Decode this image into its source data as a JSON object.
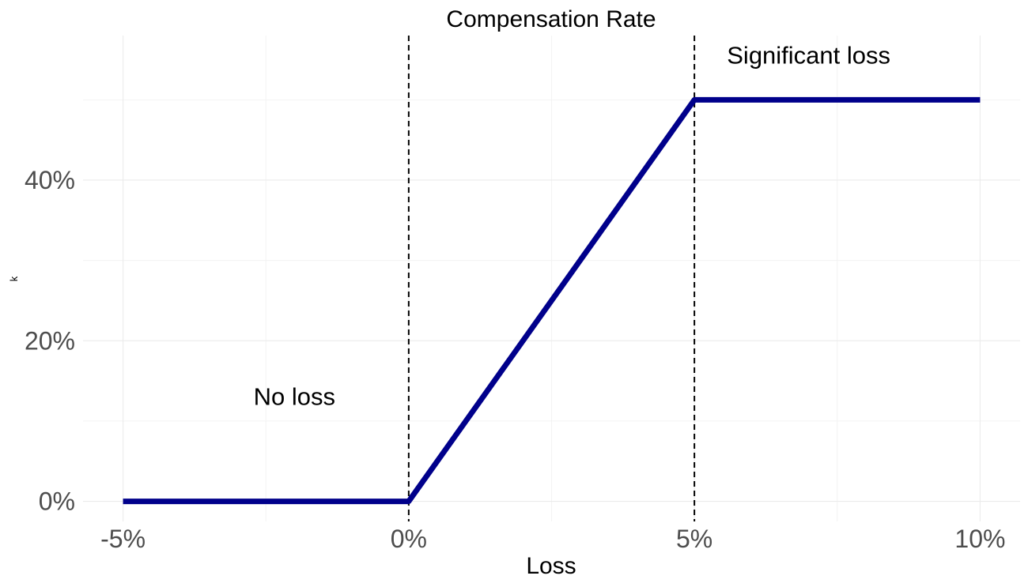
{
  "chart_data": {
    "type": "line",
    "title": "Compensation Rate",
    "xlabel": "Loss",
    "ylabel": "k",
    "x_ticks": [
      -5,
      0,
      5,
      10
    ],
    "x_tick_labels": [
      "-5%",
      "0%",
      "5%",
      "10%"
    ],
    "y_ticks": [
      0,
      20,
      40
    ],
    "y_tick_labels": [
      "0%",
      "20%",
      "40%"
    ],
    "xlim": [
      -5.7,
      10.7
    ],
    "ylim": [
      -2.5,
      58
    ],
    "grid": true,
    "series": [
      {
        "x": [
          -5,
          0,
          5,
          10
        ],
        "y": [
          0,
          0,
          50,
          50
        ],
        "color": "#00008B"
      }
    ],
    "vlines": [
      0,
      5
    ],
    "annotations": [
      {
        "text": "No loss",
        "x": -2.0,
        "y": 12
      },
      {
        "text": "Significant loss",
        "x": 7.0,
        "y": 54.5
      }
    ]
  }
}
